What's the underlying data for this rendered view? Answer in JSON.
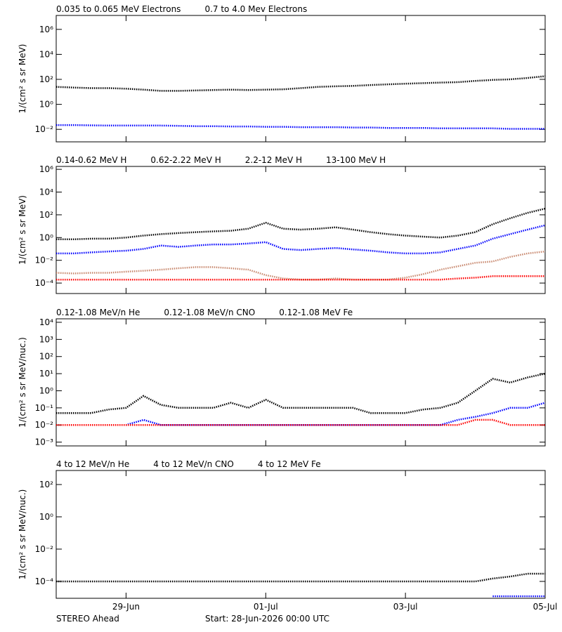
{
  "footer_left": "STEREO Ahead",
  "footer_center": "Start: 28-Jun-2026 00:00 UTC",
  "chart_data": [
    {
      "type": "scatter",
      "ylabel": "1/(cm² s sr MeV)",
      "log_y": true,
      "x": [
        0,
        0.25,
        0.5,
        0.75,
        1,
        1.25,
        1.5,
        1.75,
        2,
        2.25,
        2.5,
        2.75,
        3,
        3.25,
        3.5,
        3.75,
        4,
        4.25,
        4.5,
        4.75,
        5,
        5.25,
        5.5,
        5.75,
        6,
        6.25,
        6.5,
        6.75,
        7
      ],
      "xlim": [
        0,
        7
      ],
      "ylim": [
        0.001,
        13000000
      ],
      "yticks": [
        {
          "value": 1000000,
          "label": "10⁶"
        },
        {
          "value": 10000,
          "label": "10⁴"
        },
        {
          "value": 100,
          "label": "10²"
        },
        {
          "value": 1,
          "label": "10⁰"
        },
        {
          "value": 0.01,
          "label": "10⁻²"
        }
      ],
      "series": [
        {
          "name": "0.035 to 0.065 MeV Electrons",
          "color": "#000000",
          "values": [
            25,
            22,
            20,
            20,
            18,
            15,
            12,
            12,
            13,
            14,
            15,
            14,
            15,
            16,
            20,
            25,
            28,
            30,
            35,
            40,
            45,
            50,
            55,
            60,
            75,
            90,
            100,
            130,
            180
          ]
        },
        {
          "name": "0.7 to 4.0 Mev Electrons",
          "color": "#0000ff",
          "values": [
            0.022,
            0.022,
            0.021,
            0.02,
            0.02,
            0.02,
            0.02,
            0.019,
            0.018,
            0.018,
            0.017,
            0.017,
            0.016,
            0.016,
            0.015,
            0.015,
            0.015,
            0.014,
            0.014,
            0.013,
            0.013,
            0.013,
            0.012,
            0.012,
            0.012,
            0.012,
            0.011,
            0.011,
            0.011
          ]
        }
      ]
    },
    {
      "type": "scatter",
      "ylabel": "1/(cm² s sr MeV)",
      "log_y": true,
      "x": [
        0,
        0.25,
        0.5,
        0.75,
        1,
        1.25,
        1.5,
        1.75,
        2,
        2.25,
        2.5,
        2.75,
        3,
        3.25,
        3.5,
        3.75,
        4,
        4.25,
        4.5,
        4.75,
        5,
        5.25,
        5.5,
        5.75,
        6,
        6.25,
        6.5,
        6.75,
        7
      ],
      "xlim": [
        0,
        7
      ],
      "ylim": [
        1.2e-05,
        1800000
      ],
      "yticks": [
        {
          "value": 1000000,
          "label": "10⁶"
        },
        {
          "value": 10000,
          "label": "10⁴"
        },
        {
          "value": 100,
          "label": "10²"
        },
        {
          "value": 1,
          "label": "10⁰"
        },
        {
          "value": 0.01,
          "label": "10⁻²"
        },
        {
          "value": 0.0001,
          "label": "10⁻⁴"
        }
      ],
      "series": [
        {
          "name": "0.14-0.62 MeV H",
          "color": "#000000",
          "values": [
            0.7,
            0.7,
            0.8,
            0.8,
            1,
            1.5,
            2,
            2.5,
            3,
            3.5,
            4,
            6,
            20,
            6,
            5,
            6,
            8,
            5,
            3,
            2,
            1.5,
            1.2,
            1,
            1.5,
            3,
            15,
            50,
            150,
            350
          ]
        },
        {
          "name": "0.62-2.22 MeV H",
          "color": "#0000ff",
          "values": [
            0.04,
            0.04,
            0.05,
            0.06,
            0.07,
            0.1,
            0.2,
            0.15,
            0.2,
            0.25,
            0.25,
            0.3,
            0.4,
            0.1,
            0.08,
            0.1,
            0.12,
            0.09,
            0.07,
            0.05,
            0.04,
            0.04,
            0.05,
            0.1,
            0.2,
            0.8,
            2,
            5,
            12
          ]
        },
        {
          "name": "2.2-12 MeV H",
          "color": "#c8886e",
          "values": [
            0.0008,
            0.0007,
            0.0008,
            0.0008,
            0.001,
            0.0012,
            0.0015,
            0.002,
            0.0025,
            0.0025,
            0.002,
            0.0015,
            0.0005,
            0.00025,
            0.0002,
            0.0002,
            0.00025,
            0.0002,
            0.0002,
            0.0002,
            0.0003,
            0.0006,
            0.0015,
            0.003,
            0.006,
            0.008,
            0.02,
            0.04,
            0.06
          ]
        },
        {
          "name": "13-100 MeV H",
          "color": "#ff0000",
          "values": [
            0.0002,
            0.0002,
            0.0002,
            0.0002,
            0.0002,
            0.0002,
            0.0002,
            0.0002,
            0.0002,
            0.0002,
            0.0002,
            0.0002,
            0.0002,
            0.0002,
            0.0002,
            0.0002,
            0.0002,
            0.0002,
            0.0002,
            0.0002,
            0.0002,
            0.0002,
            0.0002,
            0.00025,
            0.0003,
            0.0004,
            0.0004,
            0.0004,
            0.0004
          ]
        }
      ]
    },
    {
      "type": "scatter",
      "ylabel": "1/(cm² s sr MeV/nuc.)",
      "log_y": true,
      "x": [
        0,
        0.25,
        0.5,
        0.75,
        1,
        1.25,
        1.5,
        1.75,
        2,
        2.25,
        2.5,
        2.75,
        3,
        3.25,
        3.5,
        3.75,
        4,
        4.25,
        4.5,
        4.75,
        5,
        5.25,
        5.5,
        5.75,
        6,
        6.25,
        6.5,
        6.75,
        7
      ],
      "xlim": [
        0,
        7
      ],
      "ylim": [
        0.0006,
        16000
      ],
      "yticks": [
        {
          "value": 10000,
          "label": "10⁴"
        },
        {
          "value": 1000,
          "label": "10³"
        },
        {
          "value": 100,
          "label": "10²"
        },
        {
          "value": 10,
          "label": "10¹"
        },
        {
          "value": 1,
          "label": "10⁰"
        },
        {
          "value": 0.1,
          "label": "10⁻¹"
        },
        {
          "value": 0.01,
          "label": "10⁻²"
        },
        {
          "value": 0.001,
          "label": "10⁻³"
        }
      ],
      "series": [
        {
          "name": "0.12-1.08 MeV/n He",
          "color": "#000000",
          "values": [
            0.05,
            0.05,
            0.05,
            0.08,
            0.1,
            0.5,
            0.15,
            0.1,
            0.1,
            0.1,
            0.2,
            0.1,
            0.3,
            0.1,
            0.1,
            0.1,
            0.1,
            0.1,
            0.05,
            0.05,
            0.05,
            0.08,
            0.1,
            0.2,
            1,
            5,
            3,
            6,
            10
          ]
        },
        {
          "name": "0.12-1.08 MeV/n CNO",
          "color": "#0000ff",
          "values": [
            0.01,
            0.01,
            0.01,
            0.01,
            0.01,
            0.02,
            0.01,
            0.01,
            0.01,
            0.01,
            0.01,
            0.01,
            0.01,
            0.01,
            0.01,
            0.01,
            0.01,
            0.01,
            0.01,
            0.01,
            0.01,
            0.01,
            0.01,
            0.02,
            0.03,
            0.05,
            0.1,
            0.1,
            0.2
          ]
        },
        {
          "name": "0.12-1.08 MeV Fe",
          "color": "#ff0000",
          "values": [
            0.01,
            0.01,
            0.01,
            0.01,
            0.01,
            0.01,
            0.01,
            0.01,
            0.01,
            0.01,
            0.01,
            0.01,
            0.01,
            0.01,
            0.01,
            0.01,
            0.01,
            0.01,
            0.01,
            0.01,
            0.01,
            0.01,
            0.01,
            0.01,
            0.02,
            0.02,
            0.01,
            0.01,
            0.01
          ]
        }
      ]
    },
    {
      "type": "scatter",
      "ylabel": "1/(cm² s sr MeV/nuc.)",
      "log_y": true,
      "x": [
        0,
        0.25,
        0.5,
        0.75,
        1,
        1.25,
        1.5,
        1.75,
        2,
        2.25,
        2.5,
        2.75,
        3,
        3.25,
        3.5,
        3.75,
        4,
        4.25,
        4.5,
        4.75,
        5,
        5.25,
        5.5,
        5.75,
        6,
        6.25,
        6.5,
        6.75,
        7
      ],
      "xlim": [
        0,
        7
      ],
      "ylim": [
        9e-06,
        740
      ],
      "xticks": [
        {
          "value": 1,
          "label": "29-Jun"
        },
        {
          "value": 3,
          "label": "01-Jul"
        },
        {
          "value": 5,
          "label": "03-Jul"
        },
        {
          "value": 7,
          "label": "05-Jul"
        }
      ],
      "yticks": [
        {
          "value": 100,
          "label": "10²"
        },
        {
          "value": 1,
          "label": "10⁰"
        },
        {
          "value": 0.01,
          "label": "10⁻²"
        },
        {
          "value": 0.0001,
          "label": "10⁻⁴"
        }
      ],
      "series": [
        {
          "name": "4 to 12 MeV/n He",
          "color": "#000000",
          "values": [
            0.0001,
            0.0001,
            0.0001,
            0.0001,
            0.0001,
            0.0001,
            0.0001,
            0.0001,
            0.0001,
            0.0001,
            0.0001,
            0.0001,
            0.0001,
            0.0001,
            0.0001,
            0.0001,
            0.0001,
            0.0001,
            0.0001,
            0.0001,
            0.0001,
            0.0001,
            0.0001,
            0.0001,
            0.0001,
            0.00015,
            0.0002,
            0.0003,
            0.0003
          ]
        },
        {
          "name": "4 to 12 MeV/n CNO",
          "color": "#0000ff",
          "values": [
            null,
            null,
            null,
            null,
            null,
            null,
            null,
            null,
            null,
            null,
            null,
            null,
            null,
            null,
            null,
            null,
            null,
            null,
            null,
            null,
            null,
            null,
            null,
            null,
            null,
            1.2e-05,
            1.2e-05,
            1.2e-05,
            1.2e-05
          ]
        },
        {
          "name": "4 to 12 MeV Fe",
          "color": "#ff0000",
          "values": [
            null,
            null,
            null,
            null,
            null,
            null,
            null,
            null,
            null,
            null,
            null,
            null,
            null,
            null,
            null,
            null,
            null,
            null,
            null,
            null,
            null,
            null,
            null,
            null,
            null,
            null,
            null,
            null,
            null
          ]
        }
      ]
    }
  ]
}
